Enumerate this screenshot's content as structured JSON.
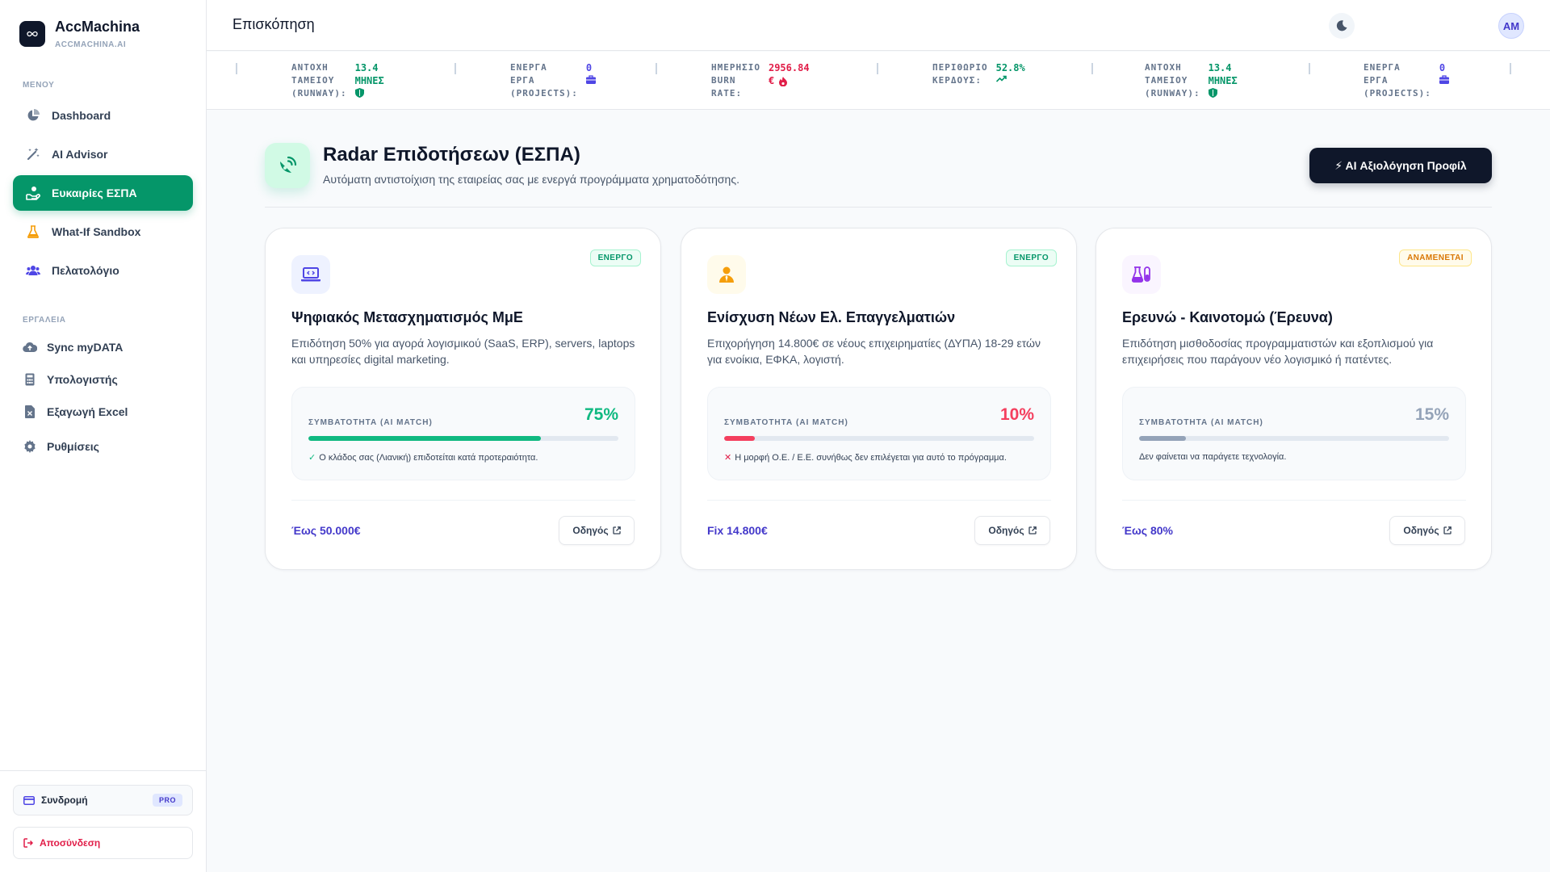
{
  "brand": {
    "name": "AccMachina",
    "domain": "ACCMACHINA.AI",
    "logo_icon": "infinity-icon"
  },
  "sidebar": {
    "menu_label": "ΜΕΝΟΥ",
    "menu": [
      {
        "label": "Dashboard",
        "icon": "pie-chart-icon",
        "active": false
      },
      {
        "label": "AI Advisor",
        "icon": "magic-wand-icon",
        "active": false
      },
      {
        "label": "Ευκαιρίες ΕΣΠΑ",
        "icon": "hand-coins-icon",
        "active": true
      },
      {
        "label": "What-If Sandbox",
        "icon": "flask-icon",
        "active": false
      },
      {
        "label": "Πελατολόγιο",
        "icon": "users-icon",
        "active": false
      }
    ],
    "tools_label": "ΕΡΓΑΛΕΙΑ",
    "tools": [
      {
        "label": "Sync myDATA",
        "icon": "cloud-upload-icon"
      },
      {
        "label": "Υπολογιστής",
        "icon": "calculator-icon"
      },
      {
        "label": "Εξαγωγή Excel",
        "icon": "file-excel-icon"
      },
      {
        "label": "Ρυθμίσεις",
        "icon": "gear-icon"
      }
    ],
    "subscription": {
      "label": "Συνδρομή",
      "badge": "PRO",
      "icon": "credit-card-icon"
    },
    "logout": {
      "label": "Αποσύνδεση",
      "icon": "logout-icon"
    }
  },
  "header": {
    "title": "Επισκόπηση",
    "theme_icon": "moon-icon",
    "avatar_initials": "AM"
  },
  "ticker": [
    {
      "label_lines": [
        "ΑΝΤΟΧΗ",
        "ΤΑΜΕΙΟΥ",
        "(RUNWAY):"
      ],
      "value_lines": [
        "13.4",
        "ΜΗΝΕΣ"
      ],
      "icon": "shield-icon",
      "color": "#059669"
    },
    {
      "label_lines": [
        "ΕΝΕΡΓΑ",
        "ΕΡΓΑ",
        "(PROJECTS):"
      ],
      "value_lines": [
        "0"
      ],
      "icon": "briefcase-icon",
      "color": "#4f46e5"
    },
    {
      "label_lines": [
        "ΗΜΕΡΗΣΙΟ",
        "BURN",
        "RATE:"
      ],
      "value_lines": [
        "2956.84",
        "€"
      ],
      "icon": "fire-icon",
      "color": "#e11d48"
    },
    {
      "label_lines": [
        "ΠΕΡΙΘΩΡΙΟ",
        "ΚΕΡΔΟΥΣ:"
      ],
      "value_lines": [
        "52.8%"
      ],
      "icon": "trend-up-icon",
      "color": "#059669"
    },
    {
      "label_lines": [
        "ΑΝΤΟΧΗ",
        "ΤΑΜΕΙΟΥ",
        "(RUNWAY):"
      ],
      "value_lines": [
        "13.4",
        "ΜΗΝΕΣ"
      ],
      "icon": "shield-icon",
      "color": "#059669"
    },
    {
      "label_lines": [
        "ΕΝΕΡΓΑ",
        "ΕΡΓΑ",
        "(PROJECTS):"
      ],
      "value_lines": [
        "0"
      ],
      "icon": "briefcase-icon",
      "color": "#4f46e5"
    }
  ],
  "hero": {
    "title": "Radar Επιδοτήσεων (ΕΣΠΑ)",
    "subtitle": "Αυτόματη αντιστοίχιση της εταιρείας σας με ενεργά προγράμματα χρηματοδότησης.",
    "icon": "satellite-dish-icon",
    "ai_button": "⚡ AI Αξιολόγηση Προφίλ"
  },
  "cards": [
    {
      "status": "ΕΝΕΡΓΟ",
      "status_type": "active",
      "icon": "laptop-code-icon",
      "icon_color": "#4f46e5",
      "icon_bg": "#eef2ff",
      "title": "Ψηφιακός Μετασχηματισμός ΜμΕ",
      "description": "Επιδότηση 50% για αγορά λογισμικού (SaaS, ERP), servers, laptops και υπηρεσίες digital marketing.",
      "match_label": "ΣΥΜΒΑΤΟΤΗΤΑ (AI MATCH)",
      "match_pct": "75%",
      "match_value": 75,
      "match_color": "#10b981",
      "note_mark": "✓",
      "note_mark_color": "#10b981",
      "note": "Ο κλάδος σας (Λιανική) επιδοτείται κατά προτεραιότητα.",
      "amount": "Έως 50.000€",
      "guide": "Οδηγός"
    },
    {
      "status": "ΕΝΕΡΓΟ",
      "status_type": "active",
      "icon": "user-tie-icon",
      "icon_color": "#f59e0b",
      "icon_bg": "#fffbeb",
      "title": "Ενίσχυση Νέων Ελ. Επαγγελματιών",
      "description": "Επιχορήγηση 14.800€ σε νέους επιχειρηματίες (ΔΥΠΑ) 18-29 ετών για ενοίκια, ΕΦΚΑ, λογιστή.",
      "match_label": "ΣΥΜΒΑΤΟΤΗΤΑ (AI MATCH)",
      "match_pct": "10%",
      "match_value": 10,
      "match_color": "#f43f5e",
      "note_mark": "✕",
      "note_mark_color": "#e11d48",
      "note": "Η μορφή Ο.Ε. / Ε.Ε. συνήθως δεν επιλέγεται για αυτό το πρόγραμμα.",
      "amount": "Fix 14.800€",
      "guide": "Οδηγός"
    },
    {
      "status": "ΑΝΑΜΕΝΕΤΑΙ",
      "status_type": "pending",
      "icon": "flask-vial-icon",
      "icon_color": "#9333ea",
      "icon_bg": "#faf5ff",
      "title": "Ερευνώ - Καινοτομώ (Έρευνα)",
      "description": "Επιδότηση μισθοδοσίας προγραμματιστών και εξοπλισμού για επιχειρήσεις που παράγουν νέο λογισμικό ή πατέντες.",
      "match_label": "ΣΥΜΒΑΤΟΤΗΤΑ (AI MATCH)",
      "match_pct": "15%",
      "match_value": 15,
      "match_color": "#94a3b8",
      "note_mark": "",
      "note_mark_color": "#64748b",
      "note": "Δεν φαίνεται να παράγετε τεχνολογία.",
      "amount": "Έως 80%",
      "guide": "Οδηγός"
    }
  ]
}
